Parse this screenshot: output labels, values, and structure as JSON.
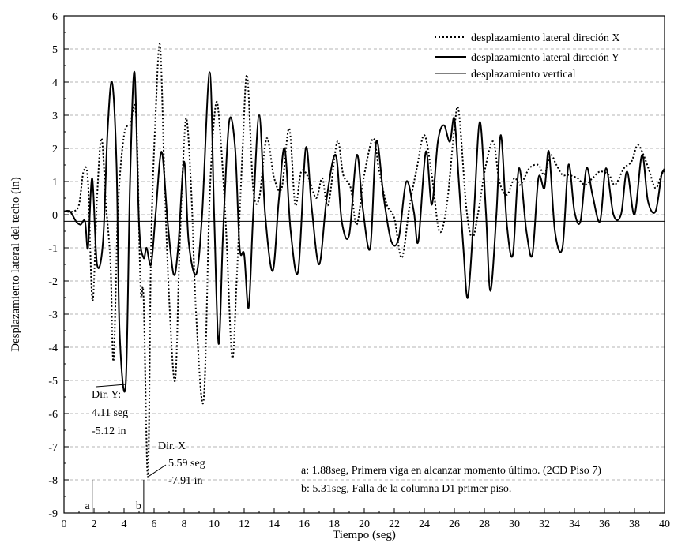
{
  "chart_data": {
    "type": "line",
    "xlabel": "Tiempo (seg)",
    "ylabel": "Desplazamiento lateral del techo (in)",
    "xlim": [
      0,
      40
    ],
    "ylim": [
      -9,
      6
    ],
    "xticks": [
      "0",
      "2",
      "4",
      "6",
      "8",
      "10",
      "12",
      "14",
      "16",
      "18",
      "20",
      "22",
      "24",
      "26",
      "28",
      "30",
      "32",
      "34",
      "36",
      "38",
      "40"
    ],
    "yticks": [
      "-9",
      "-8",
      "-7",
      "-6",
      "-5",
      "-4",
      "-3",
      "-2",
      "-1",
      "0",
      "1",
      "2",
      "3",
      "4",
      "5",
      "6"
    ],
    "grid": "horizontal-dashed",
    "legend_position": "top-right",
    "legend": [
      "desplazamiento lateral direción X",
      "desplazamiento lateral direción Y",
      "desplazamiento vertical"
    ],
    "series": [
      {
        "name": "desplazamiento lateral direción X",
        "style": "dotted",
        "points": [
          [
            0,
            0.1
          ],
          [
            0.6,
            0.1
          ],
          [
            1,
            0.3
          ],
          [
            1.3,
            1.3
          ],
          [
            1.6,
            1
          ],
          [
            1.9,
            -2.6
          ],
          [
            2.2,
            0.5
          ],
          [
            2.5,
            2.3
          ],
          [
            2.8,
            0.3
          ],
          [
            3.1,
            -1.5
          ],
          [
            3.3,
            -4.4
          ],
          [
            3.6,
            0.2
          ],
          [
            4,
            2.4
          ],
          [
            4.4,
            2.7
          ],
          [
            4.8,
            3
          ],
          [
            5.1,
            -2.2
          ],
          [
            5.3,
            -2.5
          ],
          [
            5.59,
            -7.91
          ],
          [
            5.8,
            -1
          ],
          [
            6.1,
            3
          ],
          [
            6.4,
            5.1
          ],
          [
            6.7,
            1
          ],
          [
            7,
            -2.5
          ],
          [
            7.4,
            -5
          ],
          [
            7.7,
            -1
          ],
          [
            8,
            2.2
          ],
          [
            8.2,
            2.8
          ],
          [
            8.5,
            0.5
          ],
          [
            8.8,
            -3
          ],
          [
            9.3,
            -5.6
          ],
          [
            9.7,
            0.5
          ],
          [
            10.1,
            3.3
          ],
          [
            10.4,
            2.5
          ],
          [
            10.8,
            -0.5
          ],
          [
            11.2,
            -4.3
          ],
          [
            11.5,
            -2
          ],
          [
            11.9,
            2
          ],
          [
            12.2,
            4.2
          ],
          [
            12.6,
            0.8
          ],
          [
            13,
            0.5
          ],
          [
            13.5,
            2.3
          ],
          [
            14,
            1.1
          ],
          [
            14.5,
            0.8
          ],
          [
            15,
            2.6
          ],
          [
            15.4,
            0.3
          ],
          [
            15.8,
            1.3
          ],
          [
            16.3,
            1.1
          ],
          [
            16.8,
            0.5
          ],
          [
            17.2,
            1.1
          ],
          [
            17.6,
            0.3
          ],
          [
            18.2,
            2.2
          ],
          [
            18.6,
            1.2
          ],
          [
            19.1,
            0.8
          ],
          [
            19.5,
            -0.3
          ],
          [
            20,
            1.2
          ],
          [
            20.6,
            2.3
          ],
          [
            21,
            1.3
          ],
          [
            21.5,
            0.3
          ],
          [
            22,
            -0.1
          ],
          [
            22.5,
            -1.3
          ],
          [
            23,
            0.2
          ],
          [
            23.5,
            1.4
          ],
          [
            24,
            2.4
          ],
          [
            24.5,
            1.2
          ],
          [
            25,
            -0.5
          ],
          [
            25.5,
            0.3
          ],
          [
            26,
            2.6
          ],
          [
            26.3,
            3.1
          ],
          [
            26.8,
            0.2
          ],
          [
            27.2,
            -0.7
          ],
          [
            27.6,
            0.1
          ],
          [
            28.1,
            1.5
          ],
          [
            28.6,
            2.2
          ],
          [
            29,
            1
          ],
          [
            29.5,
            0.6
          ],
          [
            30,
            1.1
          ],
          [
            30.4,
            0.9
          ],
          [
            31,
            1.4
          ],
          [
            31.6,
            1.5
          ],
          [
            32,
            1.2
          ],
          [
            32.4,
            1.8
          ],
          [
            32.8,
            1.5
          ],
          [
            33.2,
            1.2
          ],
          [
            33.6,
            1.2
          ],
          [
            34.2,
            1.1
          ],
          [
            34.7,
            0.9
          ],
          [
            35.2,
            1.1
          ],
          [
            35.7,
            1.3
          ],
          [
            36.3,
            1.2
          ],
          [
            36.7,
            0.9
          ],
          [
            37.3,
            1.4
          ],
          [
            37.8,
            1.6
          ],
          [
            38.2,
            2.1
          ],
          [
            38.6,
            1.8
          ],
          [
            39,
            1.3
          ],
          [
            39.4,
            0.8
          ],
          [
            39.8,
            1.2
          ],
          [
            40,
            1.4
          ]
        ]
      },
      {
        "name": "desplazamiento lateral direción Y",
        "style": "solid-thick",
        "points": [
          [
            0,
            0.1
          ],
          [
            0.4,
            0.1
          ],
          [
            0.8,
            -0.2
          ],
          [
            1.1,
            -0.3
          ],
          [
            1.4,
            -0.2
          ],
          [
            1.6,
            -1
          ],
          [
            1.88,
            1.1
          ],
          [
            2.2,
            -1.5
          ],
          [
            2.6,
            -0.8
          ],
          [
            2.9,
            2.5
          ],
          [
            3.2,
            4
          ],
          [
            3.5,
            1.5
          ],
          [
            3.7,
            -3.5
          ],
          [
            4.11,
            -5.12
          ],
          [
            4.4,
            1
          ],
          [
            4.7,
            4.3
          ],
          [
            5,
            -0.3
          ],
          [
            5.3,
            -1.3
          ],
          [
            5.5,
            -1
          ],
          [
            5.8,
            -1.5
          ],
          [
            6.1,
            0
          ],
          [
            6.5,
            1.9
          ],
          [
            6.9,
            -0.2
          ],
          [
            7.3,
            -1.8
          ],
          [
            7.6,
            -1
          ],
          [
            8,
            1.6
          ],
          [
            8.3,
            -0.8
          ],
          [
            8.8,
            -1.8
          ],
          [
            9.2,
            0
          ],
          [
            9.7,
            4.3
          ],
          [
            10,
            0
          ],
          [
            10.3,
            -3.9
          ],
          [
            10.6,
            -0.5
          ],
          [
            11,
            2.8
          ],
          [
            11.4,
            2
          ],
          [
            11.7,
            -1
          ],
          [
            12,
            -1.2
          ],
          [
            12.3,
            -2.8
          ],
          [
            12.6,
            0
          ],
          [
            13,
            3
          ],
          [
            13.4,
            0
          ],
          [
            13.9,
            -1.7
          ],
          [
            14.3,
            0.4
          ],
          [
            14.7,
            2
          ],
          [
            15.1,
            -0.5
          ],
          [
            15.6,
            -1.7
          ],
          [
            16.1,
            2
          ],
          [
            16.5,
            0.2
          ],
          [
            17,
            -1.5
          ],
          [
            17.5,
            0.5
          ],
          [
            18.1,
            1.8
          ],
          [
            18.5,
            -0.2
          ],
          [
            19,
            -0.6
          ],
          [
            19.5,
            1.8
          ],
          [
            19.9,
            0.2
          ],
          [
            20.4,
            -1
          ],
          [
            20.8,
            2.2
          ],
          [
            21.3,
            0.5
          ],
          [
            21.8,
            -0.8
          ],
          [
            22.3,
            -0.7
          ],
          [
            22.8,
            1
          ],
          [
            23.3,
            0.1
          ],
          [
            23.6,
            -0.8
          ],
          [
            24.1,
            1.9
          ],
          [
            24.5,
            0.3
          ],
          [
            24.9,
            2.2
          ],
          [
            25.3,
            2.7
          ],
          [
            25.7,
            2.2
          ],
          [
            26,
            2.9
          ],
          [
            26.3,
            1
          ],
          [
            26.6,
            -1
          ],
          [
            26.9,
            -2.5
          ],
          [
            27.3,
            0
          ],
          [
            27.7,
            2.8
          ],
          [
            28.1,
            0.1
          ],
          [
            28.4,
            -2.3
          ],
          [
            28.8,
            0
          ],
          [
            29.1,
            2.4
          ],
          [
            29.5,
            -0.3
          ],
          [
            29.9,
            -1.2
          ],
          [
            30.3,
            1.4
          ],
          [
            30.8,
            -0.5
          ],
          [
            31.2,
            -1.2
          ],
          [
            31.6,
            1.1
          ],
          [
            32,
            0.8
          ],
          [
            32.3,
            1.9
          ],
          [
            32.7,
            -0.5
          ],
          [
            33.2,
            -1
          ],
          [
            33.6,
            1.5
          ],
          [
            34,
            0.1
          ],
          [
            34.4,
            -0.2
          ],
          [
            34.8,
            1.4
          ],
          [
            35.2,
            0.6
          ],
          [
            35.7,
            -0.2
          ],
          [
            36.1,
            1.4
          ],
          [
            36.6,
            0
          ],
          [
            37.1,
            0
          ],
          [
            37.5,
            1.3
          ],
          [
            38,
            0
          ],
          [
            38.5,
            1.8
          ],
          [
            38.9,
            0.4
          ],
          [
            39.4,
            0.1
          ],
          [
            39.8,
            1.2
          ],
          [
            40,
            1.3
          ]
        ]
      },
      {
        "name": "desplazamiento vertical",
        "style": "solid-thin",
        "points": [
          [
            0,
            -0.2
          ],
          [
            40,
            -0.2
          ]
        ]
      }
    ],
    "annotations": {
      "dir_y_title": "Dir. Y:",
      "dir_y_time": "4.11 seg",
      "dir_y_value": "-5.12 in",
      "dir_x_title": "Dir. X",
      "dir_x_time": "5.59 seg",
      "dir_x_value": "-7.91 in",
      "marker_a": "a",
      "marker_b": "b",
      "note_a": "a: 1.88seg, Primera viga en alcanzar momento último. (2CD Piso 7)",
      "note_b": "b: 5.31seg, Falla de la columna D1 primer piso."
    },
    "markers": {
      "a_time": 1.88,
      "b_time": 5.31,
      "dir_y_point": [
        4.11,
        -5.12
      ],
      "dir_x_point": [
        5.59,
        -7.91
      ]
    }
  }
}
